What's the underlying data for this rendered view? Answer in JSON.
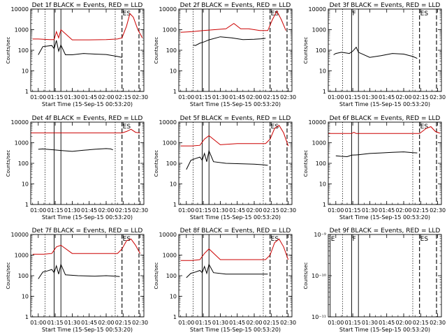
{
  "colors": {
    "events": "#000000",
    "lld": "#cc0000",
    "axis": "#000000"
  },
  "common": {
    "x_tick_labels": [
      "01:00",
      "01:15",
      "01:30",
      "01:45",
      "02:00",
      "02:15",
      "02:30"
    ],
    "x_axis_label": "Start Time (15-Sep-15 00:53:20)",
    "y_axis_label": "Counts/sec"
  },
  "chart_data": [
    {
      "type": "line",
      "title": "Det 1f BLACK = Events, RED = LLD",
      "xlabel": "Start Time (15-Sep-15 00:53:20)",
      "ylabel": "Counts/sec",
      "xlim": [
        "00:53:20",
        "02:33:20"
      ],
      "y_scale": "log",
      "ylim": [
        1,
        10000
      ],
      "y_tick_labels": [
        "1",
        "10",
        "100",
        "1000",
        "10000"
      ],
      "markers": [
        {
          "style": "dotted",
          "x": "01:06"
        },
        {
          "style": "solid",
          "x": "01:14"
        },
        {
          "style": "solid",
          "x": "01:20"
        },
        {
          "style": "dotted",
          "x": "02:08"
        },
        {
          "style": "dashed",
          "x": "02:14",
          "label": "ES"
        },
        {
          "style": "dashed",
          "x": "02:29"
        }
      ],
      "series": [
        {
          "name": "Events",
          "color": "#000000",
          "x": [
            "01:00",
            "01:04",
            "01:08",
            "01:12",
            "01:14",
            "01:16",
            "01:18",
            "01:20",
            "01:24",
            "01:30",
            "01:40",
            "01:50",
            "02:00",
            "02:06",
            "02:10",
            "02:14"
          ],
          "y": [
            60,
            150,
            160,
            170,
            120,
            300,
            90,
            180,
            60,
            60,
            70,
            65,
            62,
            55,
            50,
            45
          ]
        },
        {
          "name": "LLD",
          "color": "#cc0000",
          "x": [
            "00:55",
            "01:00",
            "01:10",
            "01:14",
            "01:16",
            "01:18",
            "01:20",
            "01:30",
            "01:45",
            "02:00",
            "02:10",
            "02:14",
            "02:18",
            "02:21",
            "02:24",
            "02:28",
            "02:32"
          ],
          "y": [
            350,
            350,
            330,
            330,
            800,
            400,
            1000,
            320,
            320,
            330,
            350,
            400,
            1500,
            6000,
            4000,
            1000,
            400
          ]
        }
      ]
    },
    {
      "type": "line",
      "title": "Det 2f BLACK = Events, RED = LLD",
      "xlabel": "Start Time (15-Sep-15 00:53:20)",
      "ylabel": "Counts/sec",
      "xlim": [
        "00:53:20",
        "02:33:20"
      ],
      "y_scale": "log",
      "ylim": [
        1,
        10000
      ],
      "y_tick_labels": [
        "1",
        "10",
        "100",
        "1000",
        "10000"
      ],
      "markers": [
        {
          "style": "dotted",
          "x": "01:06"
        },
        {
          "style": "solid",
          "x": "01:14"
        },
        {
          "style": "solid",
          "x": "01:20"
        },
        {
          "style": "dotted",
          "x": "02:08"
        },
        {
          "style": "dashed",
          "x": "02:14",
          "label": "ES"
        },
        {
          "style": "dashed",
          "x": "02:29"
        }
      ],
      "series": [
        {
          "name": "Events",
          "color": "#000000",
          "x": [
            "01:06",
            "01:08",
            "01:12",
            "01:16",
            "01:20",
            "01:30",
            "01:40",
            "01:50",
            "02:00",
            "02:06",
            "02:10"
          ],
          "y": [
            180,
            170,
            220,
            260,
            320,
            450,
            400,
            330,
            340,
            360,
            380
          ]
        },
        {
          "name": "LLD",
          "color": "#cc0000",
          "x": [
            "00:55",
            "01:05",
            "01:15",
            "01:25",
            "01:35",
            "01:42",
            "01:48",
            "01:55",
            "02:05",
            "02:12",
            "02:16",
            "02:20",
            "02:24",
            "02:28"
          ],
          "y": [
            750,
            800,
            900,
            1000,
            1100,
            2000,
            1100,
            1100,
            900,
            900,
            3000,
            8000,
            3000,
            900
          ]
        }
      ]
    },
    {
      "type": "line",
      "title": "Det 3f BLACK = Events, RED = LLD",
      "xlabel": "Start Time (15-Sep-15 00:53:20)",
      "ylabel": "Counts/sec",
      "xlim": [
        "00:53:20",
        "02:33:20"
      ],
      "y_scale": "log",
      "ylim": [
        1,
        10000
      ],
      "y_tick_labels": [
        "1",
        "10",
        "100",
        "1000",
        "10000"
      ],
      "markers": [
        {
          "style": "dotted",
          "x": "01:06"
        },
        {
          "style": "solid",
          "x": "01:14",
          "label": "F"
        },
        {
          "style": "solid",
          "x": "01:20"
        },
        {
          "style": "dotted",
          "x": "02:08"
        },
        {
          "style": "dashed",
          "x": "02:14",
          "label": "ES"
        },
        {
          "style": "dashed",
          "x": "02:29"
        }
      ],
      "series": [
        {
          "name": "Events",
          "color": "#000000",
          "x": [
            "00:58",
            "01:00",
            "01:05",
            "01:12",
            "01:15",
            "01:18",
            "01:20",
            "01:30",
            "01:40",
            "01:50",
            "02:00",
            "02:08",
            "02:12"
          ],
          "y": [
            60,
            70,
            80,
            70,
            90,
            140,
            80,
            45,
            55,
            70,
            65,
            50,
            40
          ]
        }
      ]
    },
    {
      "type": "line",
      "title": "Det 4f BLACK = Events, RED = LLD",
      "xlabel": "Start Time (15-Sep-15 00:53:20)",
      "ylabel": "Counts/sec",
      "xlim": [
        "00:53:20",
        "02:33:20"
      ],
      "y_scale": "log",
      "ylim": [
        1,
        10000
      ],
      "y_tick_labels": [
        "1",
        "10",
        "100",
        "1000",
        "10000"
      ],
      "markers": [
        {
          "style": "dotted",
          "x": "01:06"
        },
        {
          "style": "solid",
          "x": "01:14"
        },
        {
          "style": "solid",
          "x": "01:20"
        },
        {
          "style": "dotted",
          "x": "02:08"
        },
        {
          "style": "dashed",
          "x": "02:14",
          "label": "ES"
        },
        {
          "style": "dashed",
          "x": "02:29"
        }
      ],
      "series": [
        {
          "name": "Events",
          "color": "#000000",
          "x": [
            "01:00",
            "01:04",
            "01:14",
            "01:20",
            "01:30",
            "01:40",
            "01:50",
            "02:00",
            "02:04",
            "02:06"
          ],
          "y": [
            480,
            500,
            450,
            420,
            380,
            430,
            480,
            520,
            500,
            450
          ]
        },
        {
          "name": "LLD",
          "color": "#cc0000",
          "x": [
            "00:53",
            "01:30",
            "02:00",
            "02:14",
            "02:18",
            "02:22",
            "02:26",
            "02:30"
          ],
          "y": [
            3000,
            3000,
            3000,
            3000,
            3500,
            4500,
            3200,
            3000
          ]
        }
      ]
    },
    {
      "type": "line",
      "title": "Det 5f BLACK = Events, RED = LLD",
      "xlabel": "Start Time (15-Sep-15 00:53:20)",
      "ylabel": "Counts/sec",
      "xlim": [
        "00:53:20",
        "02:33:20"
      ],
      "y_scale": "log",
      "ylim": [
        1,
        10000
      ],
      "y_tick_labels": [
        "1",
        "10",
        "100",
        "1000",
        "10000"
      ],
      "markers": [
        {
          "style": "dotted",
          "x": "01:06"
        },
        {
          "style": "solid",
          "x": "01:14"
        },
        {
          "style": "solid",
          "x": "01:20"
        },
        {
          "style": "dotted",
          "x": "02:08"
        },
        {
          "style": "dashed",
          "x": "02:14",
          "label": "ES"
        },
        {
          "style": "dashed",
          "x": "02:29"
        }
      ],
      "series": [
        {
          "name": "Events",
          "color": "#000000",
          "x": [
            "01:00",
            "01:04",
            "01:08",
            "01:12",
            "01:14",
            "01:16",
            "01:18",
            "01:20",
            "01:24",
            "01:35",
            "01:50",
            "02:00",
            "02:08",
            "02:12"
          ],
          "y": [
            50,
            140,
            170,
            200,
            140,
            300,
            120,
            400,
            120,
            100,
            95,
            90,
            85,
            80
          ]
        },
        {
          "name": "LLD",
          "color": "#cc0000",
          "x": [
            "00:55",
            "01:05",
            "01:12",
            "01:16",
            "01:20",
            "01:30",
            "01:45",
            "02:00",
            "02:10",
            "02:14",
            "02:18",
            "02:22",
            "02:26",
            "02:30"
          ],
          "y": [
            700,
            700,
            750,
            1500,
            2200,
            800,
            900,
            900,
            900,
            1500,
            5000,
            7000,
            3000,
            700
          ]
        }
      ]
    },
    {
      "type": "line",
      "title": "Det 6f BLACK = Events, RED = LLD",
      "xlabel": "Start Time (15-Sep-15 00:53:20)",
      "ylabel": "Counts/sec",
      "xlim": [
        "00:53:20",
        "02:33:20"
      ],
      "y_scale": "log",
      "ylim": [
        1,
        10000
      ],
      "y_tick_labels": [
        "1",
        "10",
        "100",
        "1000",
        "10000"
      ],
      "markers": [
        {
          "style": "dotted",
          "x": "01:06"
        },
        {
          "style": "solid",
          "x": "01:14"
        },
        {
          "style": "solid",
          "x": "01:20"
        },
        {
          "style": "dotted",
          "x": "02:08"
        },
        {
          "style": "dashed",
          "x": "02:14",
          "label": "ES"
        },
        {
          "style": "dashed",
          "x": "02:29"
        }
      ],
      "series": [
        {
          "name": "Events",
          "color": "#000000",
          "x": [
            "01:00",
            "01:04",
            "01:10",
            "01:14",
            "01:20",
            "01:30",
            "01:40",
            "01:50",
            "02:00",
            "02:08",
            "02:12"
          ],
          "y": [
            230,
            220,
            210,
            250,
            260,
            300,
            320,
            340,
            360,
            330,
            320
          ]
        },
        {
          "name": "LLD",
          "color": "#cc0000",
          "x": [
            "00:53",
            "01:14",
            "01:16",
            "01:18",
            "01:30",
            "02:00",
            "02:14",
            "02:20",
            "02:24",
            "02:28",
            "02:32"
          ],
          "y": [
            2800,
            2800,
            3200,
            2800,
            2800,
            2800,
            2800,
            5000,
            6000,
            3500,
            2900
          ]
        }
      ]
    },
    {
      "type": "line",
      "title": "Det 7f BLACK = Events, RED = LLD",
      "xlabel": "Start Time (15-Sep-15 00:53:20)",
      "ylabel": "Counts/sec",
      "xlim": [
        "00:53:20",
        "02:33:20"
      ],
      "y_scale": "log",
      "ylim": [
        1,
        10000
      ],
      "y_tick_labels": [
        "1",
        "10",
        "100",
        "1000",
        "10000"
      ],
      "markers": [
        {
          "style": "dotted",
          "x": "01:06"
        },
        {
          "style": "solid",
          "x": "01:14"
        },
        {
          "style": "solid",
          "x": "01:20"
        },
        {
          "style": "dotted",
          "x": "02:08"
        },
        {
          "style": "dashed",
          "x": "02:14",
          "label": "ES"
        },
        {
          "style": "dashed",
          "x": "02:29"
        }
      ],
      "series": [
        {
          "name": "Events",
          "color": "#000000",
          "x": [
            "01:00",
            "01:04",
            "01:08",
            "01:12",
            "01:14",
            "01:16",
            "01:18",
            "01:20",
            "01:24",
            "01:35",
            "01:50",
            "02:00",
            "02:08",
            "02:12"
          ],
          "y": [
            70,
            150,
            170,
            200,
            140,
            300,
            120,
            350,
            110,
            100,
            95,
            100,
            95,
            90
          ]
        },
        {
          "name": "LLD",
          "color": "#cc0000",
          "x": [
            "00:55",
            "01:05",
            "01:12",
            "01:16",
            "01:20",
            "01:30",
            "01:45",
            "02:00",
            "02:10",
            "02:14",
            "02:18",
            "02:22",
            "02:26",
            "02:30"
          ],
          "y": [
            1100,
            1100,
            1200,
            2500,
            3000,
            1200,
            1200,
            1200,
            1200,
            2000,
            5000,
            6000,
            3000,
            1200
          ]
        }
      ]
    },
    {
      "type": "line",
      "title": "Det 8f BLACK = Events, RED = LLD",
      "xlabel": "Start Time (15-Sep-15 00:53:20)",
      "ylabel": "Counts/sec",
      "xlim": [
        "00:53:20",
        "02:33:20"
      ],
      "y_scale": "log",
      "ylim": [
        1,
        10000
      ],
      "y_tick_labels": [
        "1",
        "10",
        "100",
        "1000",
        "10000"
      ],
      "markers": [
        {
          "style": "dotted",
          "x": "01:06"
        },
        {
          "style": "solid",
          "x": "01:14"
        },
        {
          "style": "solid",
          "x": "01:20"
        },
        {
          "style": "dotted",
          "x": "02:08"
        },
        {
          "style": "dashed",
          "x": "02:14",
          "label": "ES"
        },
        {
          "style": "dashed",
          "x": "02:29"
        }
      ],
      "series": [
        {
          "name": "Events",
          "color": "#000000",
          "x": [
            "01:00",
            "01:04",
            "01:08",
            "01:12",
            "01:14",
            "01:16",
            "01:18",
            "01:20",
            "01:24",
            "01:35",
            "01:50",
            "02:00",
            "02:08",
            "02:12"
          ],
          "y": [
            80,
            130,
            150,
            180,
            140,
            280,
            130,
            350,
            140,
            120,
            120,
            120,
            120,
            120
          ]
        },
        {
          "name": "LLD",
          "color": "#cc0000",
          "x": [
            "00:55",
            "01:05",
            "01:12",
            "01:16",
            "01:20",
            "01:30",
            "01:45",
            "02:00",
            "02:10",
            "02:14",
            "02:18",
            "02:22",
            "02:26",
            "02:30"
          ],
          "y": [
            550,
            550,
            600,
            1200,
            2000,
            600,
            600,
            600,
            600,
            1000,
            4000,
            6000,
            2500,
            600
          ]
        }
      ]
    },
    {
      "type": "line",
      "title": "Det 9f BLACK = Events, RED = LLD",
      "xlabel": "Start Time (15-Sep-15 00:53:20)",
      "ylabel": "Counts/sec",
      "xlim": [
        "00:53:20",
        "02:33:20"
      ],
      "y_scale": "log",
      "ylim": [
        1e-11,
        1e-09
      ],
      "y_tick_labels": [
        "10⁻¹¹",
        "10⁻¹⁰",
        "10⁻⁹"
      ],
      "markers": [
        {
          "style": "solid",
          "x": "00:55",
          "label": "E"
        },
        {
          "style": "dotted",
          "x": "01:06"
        },
        {
          "style": "solid",
          "x": "01:14",
          "label": "F"
        },
        {
          "style": "solid",
          "x": "01:20"
        },
        {
          "style": "dotted",
          "x": "02:08"
        },
        {
          "style": "dashed",
          "x": "02:14",
          "label": "ES"
        },
        {
          "style": "dashed",
          "x": "02:29"
        }
      ],
      "series": []
    }
  ]
}
